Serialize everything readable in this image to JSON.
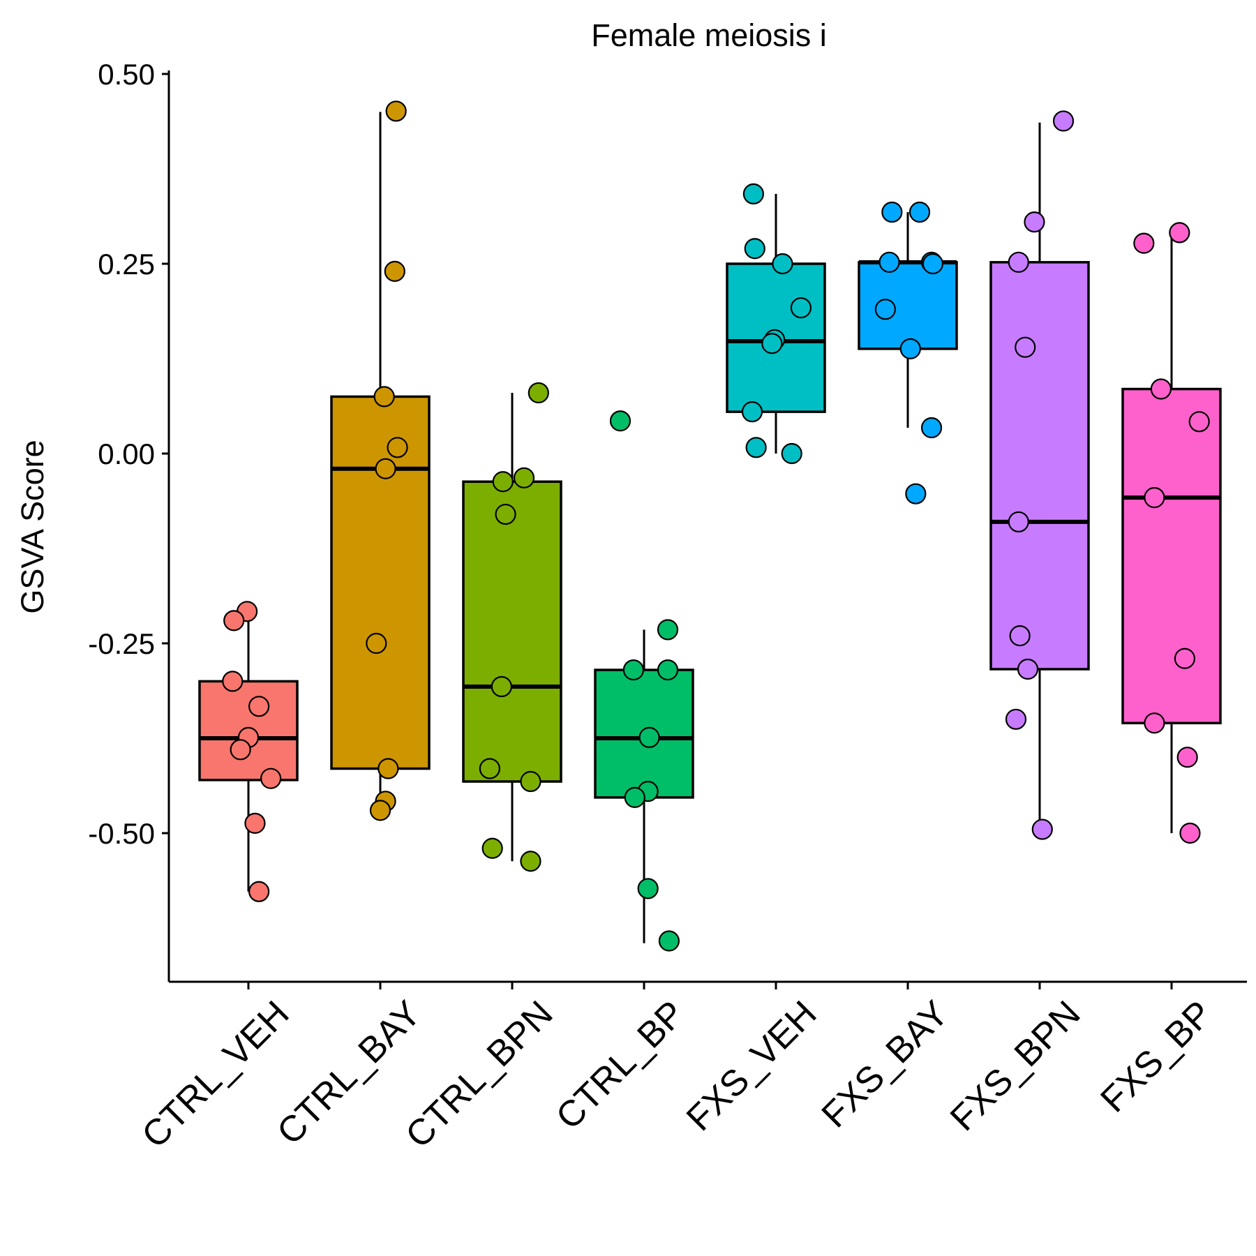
{
  "chart_data": {
    "type": "box",
    "title": "Female meiosis i",
    "xlabel": "",
    "ylabel": "GSVA Score",
    "ylim": [
      -0.69,
      0.5
    ],
    "yticks": [
      0.5,
      0.25,
      0.0,
      -0.25,
      -0.5
    ],
    "ytick_labels": [
      "0.50",
      "0.25",
      "0.00",
      "-0.25",
      "-0.50"
    ],
    "grid": false,
    "legend": "none",
    "categories": [
      "CTRL_VEH",
      "CTRL_BAY",
      "CTRL_BPN",
      "CTRL_BP",
      "FXS_VEH",
      "FXS_BAY",
      "FXS_BPN",
      "FXS_BP"
    ],
    "colors": [
      "#F8766D",
      "#CD9600",
      "#7CAE00",
      "#00BE67",
      "#00BFC4",
      "#00A9FF",
      "#C77CFF",
      "#FF61CC"
    ],
    "boxes": [
      {
        "q1": -0.43,
        "median": -0.375,
        "q3": -0.3,
        "whisker_low": -0.577,
        "whisker_high": -0.21
      },
      {
        "q1": -0.415,
        "median": -0.02,
        "q3": 0.075,
        "whisker_low": -0.47,
        "whisker_high": 0.45
      },
      {
        "q1": -0.432,
        "median": -0.307,
        "q3": -0.037,
        "whisker_low": -0.537,
        "whisker_high": 0.08
      },
      {
        "q1": -0.453,
        "median": -0.375,
        "q3": -0.285,
        "whisker_low": -0.645,
        "whisker_high": -0.232
      },
      {
        "q1": 0.055,
        "median": 0.148,
        "q3": 0.25,
        "whisker_low": 0.0,
        "whisker_high": 0.342
      },
      {
        "q1": 0.138,
        "median": 0.252,
        "q3": 0.252,
        "whisker_low": 0.034,
        "whisker_high": 0.318
      },
      {
        "q1": -0.284,
        "median": -0.09,
        "q3": 0.252,
        "whisker_low": -0.495,
        "whisker_high": 0.436
      },
      {
        "q1": -0.355,
        "median": -0.058,
        "q3": 0.085,
        "whisker_low": -0.5,
        "whisker_high": 0.291
      }
    ],
    "points": [
      [
        {
          "jitter": -0.01,
          "y": -0.208
        },
        {
          "jitter": -0.11,
          "y": -0.22
        },
        {
          "jitter": -0.12,
          "y": -0.3
        },
        {
          "jitter": 0.08,
          "y": -0.333
        },
        {
          "jitter": 0.0,
          "y": -0.374
        },
        {
          "jitter": -0.06,
          "y": -0.39
        },
        {
          "jitter": 0.17,
          "y": -0.428
        },
        {
          "jitter": 0.05,
          "y": -0.487
        },
        {
          "jitter": 0.08,
          "y": -0.577
        }
      ],
      [
        {
          "jitter": 0.12,
          "y": 0.451
        },
        {
          "jitter": 0.11,
          "y": 0.24
        },
        {
          "jitter": 0.03,
          "y": 0.075
        },
        {
          "jitter": 0.13,
          "y": 0.008
        },
        {
          "jitter": 0.04,
          "y": -0.02
        },
        {
          "jitter": -0.03,
          "y": -0.25
        },
        {
          "jitter": 0.06,
          "y": -0.415
        },
        {
          "jitter": 0.04,
          "y": -0.458
        },
        {
          "jitter": 0.0,
          "y": -0.47
        }
      ],
      [
        {
          "jitter": 0.2,
          "y": 0.08
        },
        {
          "jitter": -0.07,
          "y": -0.037
        },
        {
          "jitter": 0.09,
          "y": -0.032
        },
        {
          "jitter": -0.05,
          "y": -0.08
        },
        {
          "jitter": -0.08,
          "y": -0.307
        },
        {
          "jitter": -0.17,
          "y": -0.415
        },
        {
          "jitter": 0.14,
          "y": -0.432
        },
        {
          "jitter": -0.15,
          "y": -0.52
        },
        {
          "jitter": 0.14,
          "y": -0.537
        }
      ],
      [
        {
          "jitter": -0.18,
          "y": 0.043
        },
        {
          "jitter": 0.18,
          "y": -0.232
        },
        {
          "jitter": -0.08,
          "y": -0.285
        },
        {
          "jitter": 0.18,
          "y": -0.285
        },
        {
          "jitter": 0.04,
          "y": -0.374
        },
        {
          "jitter": 0.03,
          "y": -0.445
        },
        {
          "jitter": -0.07,
          "y": -0.453
        },
        {
          "jitter": 0.03,
          "y": -0.573
        },
        {
          "jitter": 0.19,
          "y": -0.642
        }
      ],
      [
        {
          "jitter": -0.17,
          "y": 0.342
        },
        {
          "jitter": -0.16,
          "y": 0.27
        },
        {
          "jitter": 0.05,
          "y": 0.25
        },
        {
          "jitter": 0.19,
          "y": 0.192
        },
        {
          "jitter": -0.01,
          "y": 0.15
        },
        {
          "jitter": -0.03,
          "y": 0.145
        },
        {
          "jitter": -0.18,
          "y": 0.055
        },
        {
          "jitter": -0.15,
          "y": 0.008
        },
        {
          "jitter": 0.12,
          "y": 0.0
        }
      ],
      [
        {
          "jitter": -0.12,
          "y": 0.318
        },
        {
          "jitter": 0.09,
          "y": 0.318
        },
        {
          "jitter": -0.14,
          "y": 0.252
        },
        {
          "jitter": 0.18,
          "y": 0.252
        },
        {
          "jitter": 0.19,
          "y": 0.25
        },
        {
          "jitter": -0.17,
          "y": 0.19
        },
        {
          "jitter": 0.02,
          "y": 0.138
        },
        {
          "jitter": 0.18,
          "y": 0.034
        },
        {
          "jitter": 0.06,
          "y": -0.053
        }
      ],
      [
        {
          "jitter": 0.18,
          "y": 0.438
        },
        {
          "jitter": -0.04,
          "y": 0.305
        },
        {
          "jitter": -0.16,
          "y": 0.252
        },
        {
          "jitter": -0.11,
          "y": 0.14
        },
        {
          "jitter": -0.16,
          "y": -0.09
        },
        {
          "jitter": -0.15,
          "y": -0.24
        },
        {
          "jitter": -0.09,
          "y": -0.284
        },
        {
          "jitter": -0.18,
          "y": -0.35
        },
        {
          "jitter": 0.02,
          "y": -0.495
        }
      ],
      [
        {
          "jitter": 0.06,
          "y": 0.291
        },
        {
          "jitter": -0.21,
          "y": 0.277
        },
        {
          "jitter": -0.08,
          "y": 0.085
        },
        {
          "jitter": 0.21,
          "y": 0.042
        },
        {
          "jitter": -0.13,
          "y": -0.058
        },
        {
          "jitter": 0.1,
          "y": -0.27
        },
        {
          "jitter": -0.13,
          "y": -0.355
        },
        {
          "jitter": 0.12,
          "y": -0.4
        },
        {
          "jitter": 0.14,
          "y": -0.5
        }
      ]
    ]
  }
}
